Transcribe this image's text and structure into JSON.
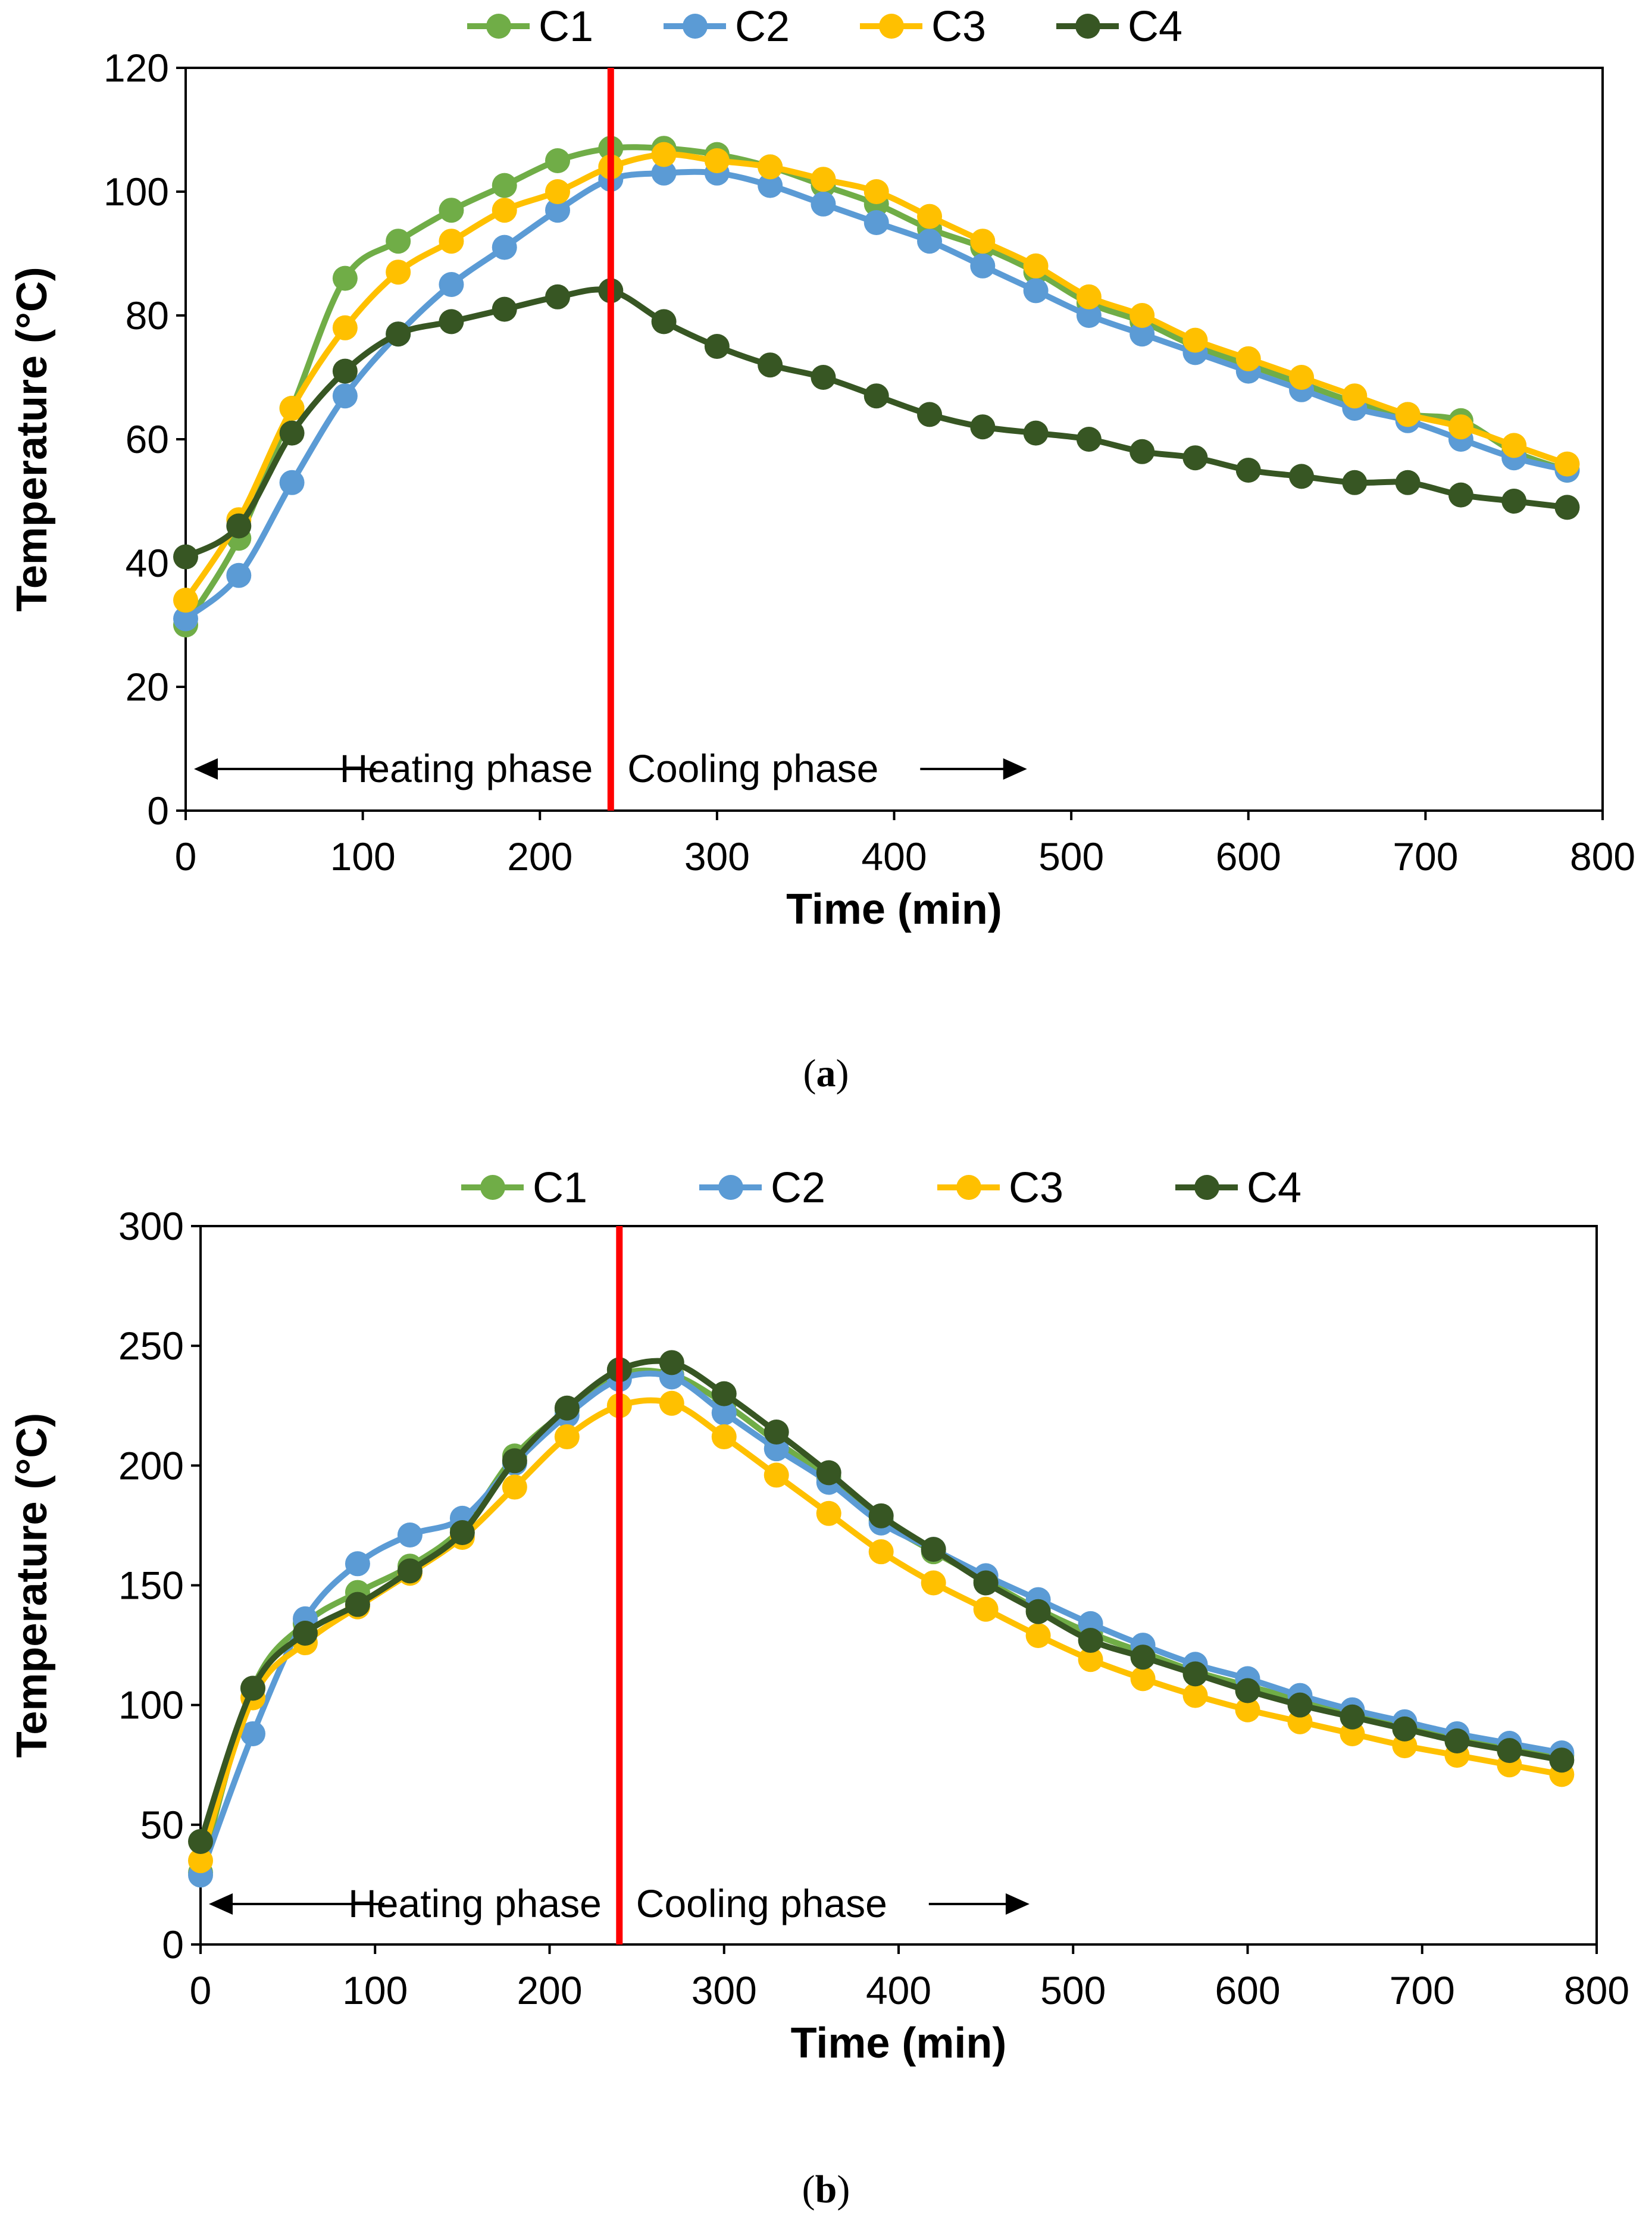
{
  "chart_data": [
    {
      "type": "line",
      "panel": "a",
      "caption": {
        "open": "(",
        "letter": "a",
        "close": ")"
      },
      "title": "",
      "xlabel": "Time (min)",
      "ylabel": "Temperature (°C)",
      "xlim": [
        0,
        800
      ],
      "ylim": [
        0,
        120
      ],
      "xticks": [
        0,
        100,
        200,
        300,
        400,
        500,
        600,
        700,
        800
      ],
      "yticks": [
        0,
        20,
        40,
        60,
        80,
        100,
        120
      ],
      "grid": false,
      "legend": "top-center",
      "x": [
        0,
        30,
        60,
        90,
        120,
        150,
        180,
        210,
        240,
        270,
        300,
        330,
        360,
        390,
        420,
        450,
        480,
        510,
        540,
        570,
        600,
        630,
        660,
        690,
        720,
        750,
        780
      ],
      "series": [
        {
          "name": "C1",
          "color": "#70ad47",
          "values": [
            30,
            44,
            65,
            86,
            92,
            97,
            101,
            105,
            107,
            107,
            106,
            104,
            101,
            98,
            94,
            91,
            87,
            82,
            79,
            75,
            72,
            69,
            66,
            64,
            63,
            58,
            55
          ]
        },
        {
          "name": "C2",
          "color": "#5b9bd5",
          "values": [
            31,
            38,
            53,
            67,
            77,
            85,
            91,
            97,
            102,
            103,
            103,
            101,
            98,
            95,
            92,
            88,
            84,
            80,
            77,
            74,
            71,
            68,
            65,
            63,
            60,
            57,
            55
          ]
        },
        {
          "name": "C3",
          "color": "#ffc000",
          "values": [
            34,
            47,
            65,
            78,
            87,
            92,
            97,
            100,
            104,
            106,
            105,
            104,
            102,
            100,
            96,
            92,
            88,
            83,
            80,
            76,
            73,
            70,
            67,
            64,
            62,
            59,
            56
          ]
        },
        {
          "name": "C4",
          "color": "#375623",
          "values": [
            41,
            46,
            61,
            71,
            77,
            79,
            81,
            83,
            84,
            79,
            75,
            72,
            70,
            67,
            64,
            62,
            61,
            60,
            58,
            57,
            55,
            54,
            53,
            53,
            51,
            50,
            49
          ]
        }
      ],
      "vline": {
        "x": 240,
        "color": "#ff0000"
      },
      "annotations": {
        "left": "Heating phase",
        "right": "Cooling phase"
      }
    },
    {
      "type": "line",
      "panel": "b",
      "caption": {
        "open": "(",
        "letter": "b",
        "close": ")"
      },
      "title": "",
      "xlabel": "Time (min)",
      "ylabel": "Temperature (°C)",
      "xlim": [
        0,
        800
      ],
      "ylim": [
        0,
        300
      ],
      "xticks": [
        0,
        100,
        200,
        300,
        400,
        500,
        600,
        700,
        800
      ],
      "yticks": [
        0,
        50,
        100,
        150,
        200,
        250,
        300
      ],
      "grid": false,
      "legend": "top-center",
      "x": [
        0,
        30,
        60,
        90,
        120,
        150,
        180,
        210,
        240,
        270,
        300,
        330,
        360,
        390,
        420,
        450,
        480,
        510,
        540,
        570,
        600,
        630,
        660,
        690,
        720,
        750,
        780
      ],
      "series": [
        {
          "name": "C1",
          "color": "#70ad47",
          "values": [
            30,
            107,
            134,
            147,
            158,
            174,
            204,
            223,
            238,
            238,
            226,
            210,
            195,
            177,
            164,
            152,
            140,
            130,
            122,
            114,
            108,
            102,
            96,
            91,
            87,
            83,
            79
          ]
        },
        {
          "name": "C2",
          "color": "#5b9bd5",
          "values": [
            29,
            88,
            136,
            159,
            171,
            178,
            201,
            221,
            236,
            237,
            222,
            207,
            193,
            176,
            165,
            154,
            144,
            134,
            125,
            117,
            111,
            104,
            98,
            93,
            88,
            84,
            80
          ]
        },
        {
          "name": "C3",
          "color": "#ffc000",
          "values": [
            35,
            103,
            126,
            141,
            155,
            170,
            191,
            212,
            225,
            226,
            212,
            196,
            180,
            164,
            151,
            140,
            129,
            119,
            111,
            104,
            98,
            93,
            88,
            83,
            79,
            75,
            71
          ]
        },
        {
          "name": "C4",
          "color": "#375623",
          "values": [
            43,
            107,
            130,
            142,
            156,
            172,
            202,
            224,
            240,
            243,
            230,
            214,
            197,
            179,
            165,
            151,
            139,
            127,
            120,
            113,
            106,
            100,
            95,
            90,
            85,
            81,
            77
          ]
        }
      ],
      "vline": {
        "x": 240,
        "color": "#ff0000"
      },
      "annotations": {
        "left": "Heating phase",
        "right": "Cooling phase"
      }
    }
  ]
}
